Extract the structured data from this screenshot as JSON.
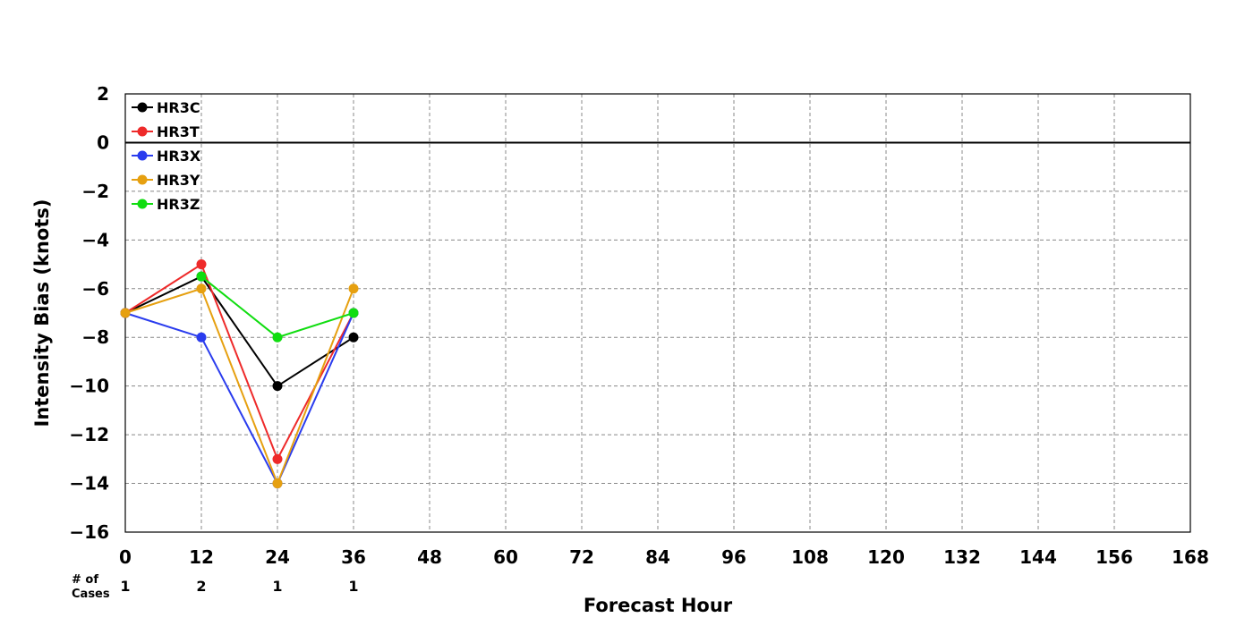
{
  "chart_data": {
    "type": "line",
    "title": "",
    "xlabel": "Forecast Hour",
    "ylabel": "Intensity Bias (knots)",
    "xlim": [
      0,
      168
    ],
    "ylim": [
      -16,
      2
    ],
    "x_ticks": [
      0,
      12,
      24,
      36,
      48,
      60,
      72,
      84,
      96,
      108,
      120,
      132,
      144,
      156,
      168
    ],
    "y_ticks": [
      2,
      0,
      -2,
      -4,
      -6,
      -8,
      -10,
      -12,
      -14,
      -16
    ],
    "x_tick_labels": [
      "0",
      "12",
      "24",
      "36",
      "48",
      "60",
      "72",
      "84",
      "96",
      "108",
      "120",
      "132",
      "144",
      "156",
      "168"
    ],
    "y_tick_labels": [
      "2",
      "0",
      "−2",
      "−4",
      "−6",
      "−8",
      "−10",
      "−12",
      "−14",
      "−16"
    ],
    "grid": true,
    "zero_line": true,
    "legend_position": "top-left",
    "series": [
      {
        "name": "HR3C",
        "color": "#000000",
        "x": [
          0,
          12,
          24,
          36
        ],
        "values": [
          -7,
          -5.5,
          -10,
          -8
        ]
      },
      {
        "name": "HR3T",
        "color": "#ee2a2a",
        "x": [
          0,
          12,
          24,
          36
        ],
        "values": [
          -7,
          -5,
          -13,
          -7
        ]
      },
      {
        "name": "HR3X",
        "color": "#2a3cee",
        "x": [
          0,
          12,
          24,
          36
        ],
        "values": [
          -7,
          -8,
          -14,
          -7
        ]
      },
      {
        "name": "HR3Y",
        "color": "#e6a010",
        "x": [
          0,
          12,
          24,
          36
        ],
        "values": [
          -7,
          -6,
          -14,
          -6
        ]
      },
      {
        "name": "HR3Z",
        "color": "#10dd10",
        "x": [
          0,
          12,
          24,
          36
        ],
        "values": [
          null,
          -5.5,
          -8,
          -7
        ]
      }
    ],
    "cases": {
      "header": [
        "# of",
        "Cases"
      ],
      "x": [
        0,
        12,
        24,
        36
      ],
      "values": [
        "1",
        "2",
        "1",
        "1"
      ]
    }
  }
}
